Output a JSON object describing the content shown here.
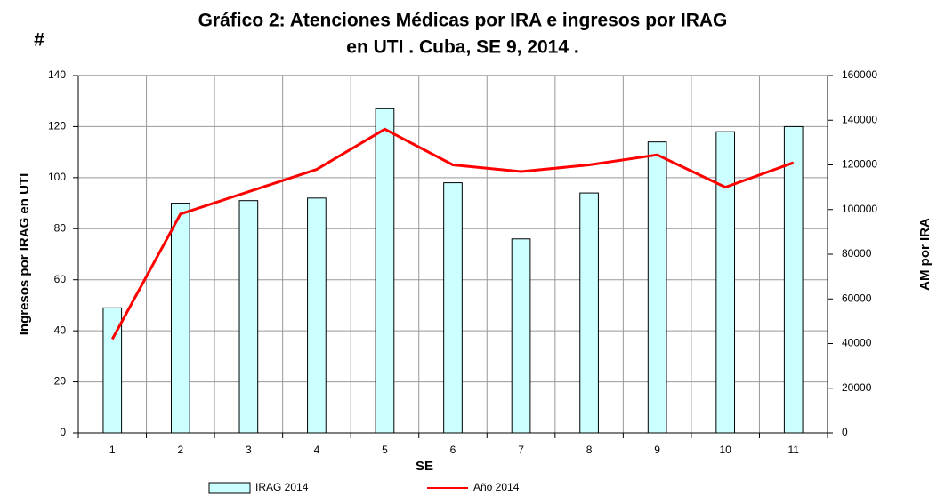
{
  "chart_data": {
    "type": "bar",
    "title": [
      "Gráfico 2: Atenciones Médicas por IRA e ingresos por IRAG",
      "en UTI . Cuba, SE 9, 2014 ."
    ],
    "annotation": "#",
    "x_label": "SE",
    "y_label": "Ingresos por IRAG en UTI",
    "y2_label": "AM por IRA",
    "categories": [
      "1",
      "2",
      "3",
      "4",
      "5",
      "6",
      "7",
      "8",
      "9",
      "10",
      "11"
    ],
    "series": [
      {
        "name": "IRAG 2014",
        "color": "#ccffff",
        "values": [
          49,
          90,
          91,
          92,
          127,
          98,
          76,
          94,
          114,
          118,
          120
        ]
      },
      {
        "name": "Año 2014",
        "color": "#ff0000",
        "axis": "y2",
        "values": [
          42000,
          98000,
          108000,
          118000,
          136000,
          120000,
          117000,
          120000,
          124500,
          110000,
          121000
        ]
      }
    ],
    "ylim": [
      0,
      140
    ],
    "yticks": [
      0,
      20,
      40,
      60,
      80,
      100,
      120,
      140
    ],
    "y2lim": [
      0,
      160000
    ],
    "y2ticks": [
      0,
      20000,
      40000,
      60000,
      80000,
      100000,
      120000,
      140000,
      160000
    ],
    "grid": true,
    "legend": "bottom"
  }
}
